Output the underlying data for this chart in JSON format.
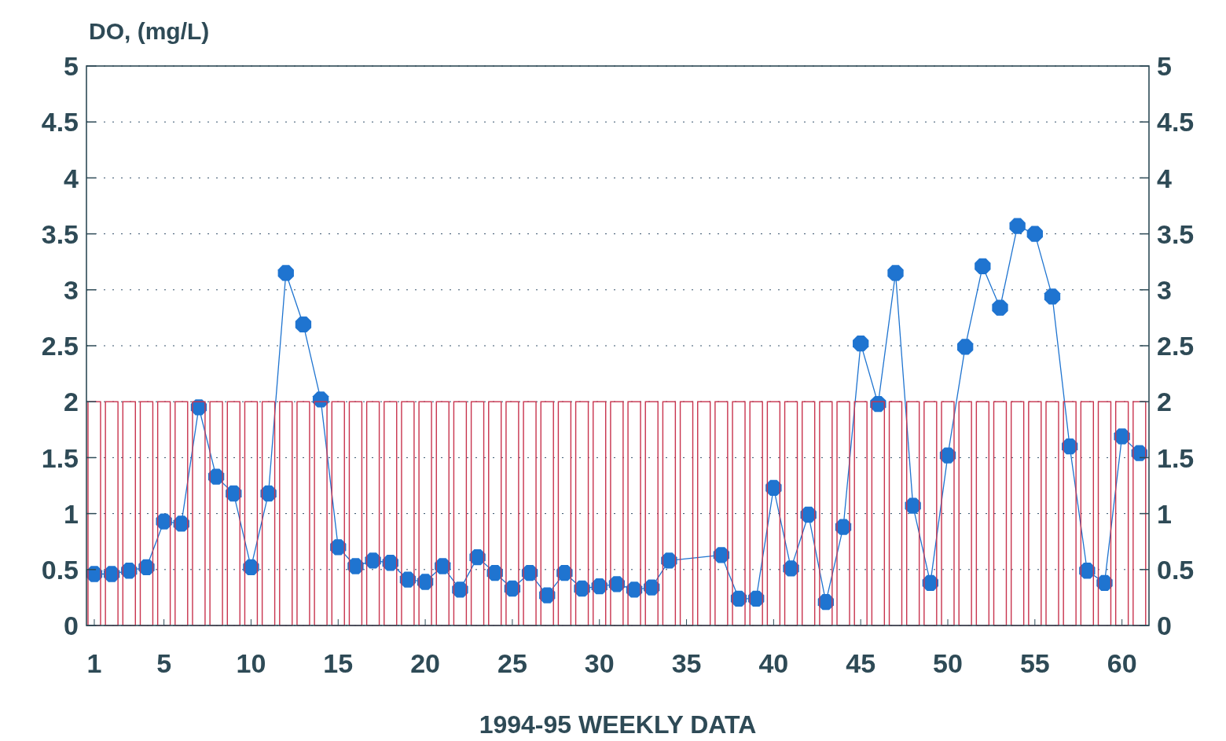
{
  "chart_data": {
    "type": "line",
    "ylabel": "DO, (mg/L)",
    "xlabel": "1994-95 WEEKLY DATA",
    "xlim": [
      0.55,
      61.55
    ],
    "xticks": [
      1,
      5,
      10,
      15,
      20,
      25,
      30,
      35,
      40,
      45,
      50,
      55,
      60
    ],
    "ylim": [
      0,
      5
    ],
    "yticks": [
      0,
      0.5,
      1,
      1.5,
      2,
      2.5,
      3,
      3.5,
      4,
      4.5,
      5
    ],
    "y2lim": [
      0,
      5
    ],
    "y2ticks": [
      0,
      0.5,
      1,
      1.5,
      2,
      2.5,
      3,
      3.5,
      4,
      4.5,
      5
    ],
    "grid": "y",
    "marker": "circle",
    "line_style": "solid",
    "x": [
      1,
      2,
      3,
      4,
      5,
      6,
      7,
      8,
      9,
      10,
      11,
      12,
      13,
      14,
      15,
      16,
      17,
      18,
      19,
      20,
      21,
      22,
      23,
      24,
      25,
      26,
      27,
      28,
      29,
      30,
      31,
      32,
      33,
      34,
      35,
      36,
      37,
      38,
      39,
      40,
      41,
      42,
      43,
      44,
      45,
      46,
      47,
      48,
      49,
      50,
      51,
      52,
      53,
      54,
      55,
      56,
      57,
      58,
      59,
      60,
      61
    ],
    "series": [
      {
        "type": "bar",
        "color": "#c8344e",
        "values": [
          2,
          2,
          2,
          2,
          2,
          2,
          2,
          2,
          2,
          2,
          2,
          2,
          2,
          2,
          2,
          2,
          2,
          2,
          2,
          2,
          2,
          2,
          2,
          2,
          2,
          2,
          2,
          2,
          2,
          2,
          2,
          2,
          2,
          2,
          2,
          2,
          2,
          2,
          2,
          2,
          2,
          2,
          2,
          2,
          2,
          2,
          2,
          2,
          2,
          2,
          2,
          2,
          2,
          2,
          2,
          2,
          2,
          2,
          2,
          2,
          2
        ]
      },
      {
        "color": "#1f74d0",
        "values": [
          0.46,
          0.46,
          0.49,
          0.52,
          0.93,
          0.91,
          1.95,
          1.33,
          1.18,
          0.52,
          1.18,
          3.15,
          2.69,
          2.02,
          0.7,
          0.53,
          0.58,
          0.56,
          0.41,
          0.39,
          0.53,
          0.32,
          0.61,
          0.47,
          0.33,
          0.47,
          0.27,
          0.47,
          0.33,
          0.35,
          0.37,
          0.32,
          0.34,
          0.58,
          null,
          null,
          0.63,
          0.24,
          0.24,
          1.23,
          0.51,
          0.99,
          0.21,
          0.88,
          2.52,
          1.98,
          3.15,
          1.07,
          0.38,
          1.52,
          2.49,
          3.21,
          2.84,
          3.57,
          3.5,
          2.94,
          1.6,
          0.49,
          0.38,
          1.69,
          1.54
        ]
      }
    ]
  }
}
